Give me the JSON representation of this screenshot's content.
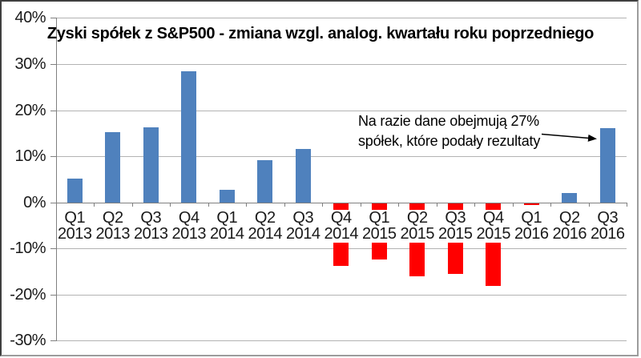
{
  "chart_data": {
    "type": "bar",
    "title": "Zyski spółek z S&P500 - zmiana wzgl. analog. kwartału roku poprzedniego",
    "categories": [
      "Q1 2013",
      "Q2 2013",
      "Q3 2013",
      "Q4 2013",
      "Q1 2014",
      "Q2 2014",
      "Q3 2014",
      "Q4 2014",
      "Q1 2015",
      "Q2 2015",
      "Q3 2015",
      "Q4 2015",
      "Q1 2016",
      "Q2 2016",
      "Q3 2016"
    ],
    "values": [
      5.2,
      15.2,
      16.2,
      28.4,
      2.7,
      9.1,
      11.5,
      -13.6,
      -12.2,
      -15.9,
      -15.3,
      -17.9,
      -0.4,
      2.1,
      16.1
    ],
    "xlabel": "",
    "ylabel": "",
    "ylim": [
      -30,
      40
    ],
    "grid": true,
    "legend": "none",
    "y_ticks": [
      {
        "value": 40,
        "label": "40%"
      },
      {
        "value": 30,
        "label": "30%"
      },
      {
        "value": 20,
        "label": "20%"
      },
      {
        "value": 10,
        "label": "10%"
      },
      {
        "value": 0,
        "label": "0%"
      },
      {
        "value": -10,
        "label": "-10%"
      },
      {
        "value": -20,
        "label": "-20%"
      },
      {
        "value": -30,
        "label": "-30%"
      }
    ],
    "annotation": {
      "line1": "Na razie dane obejmują 27%",
      "line2": "spółek, które podały rezultaty",
      "points_to": "Q3 2016"
    },
    "colors": {
      "positive_bar": "#4F81BD",
      "negative_bar": "#FF0000",
      "gridline": "#B3B3B3",
      "axis": "#808080",
      "label_text": "#1A1A1A",
      "title_text": "#000000"
    }
  }
}
